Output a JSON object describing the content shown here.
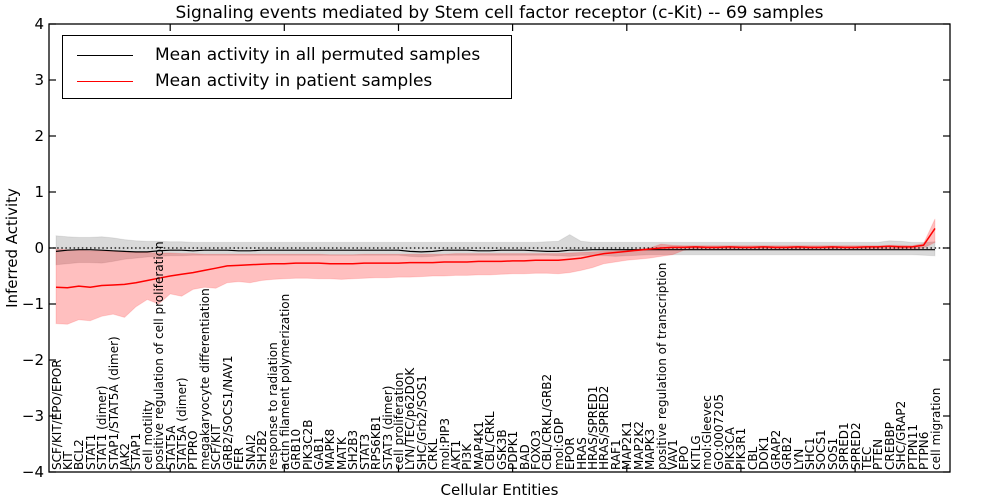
{
  "title": "Signaling events mediated by Stem cell factor receptor (c-Kit) -- 69 samples",
  "legend": [
    {
      "label": "Mean activity in all permuted samples",
      "color": "#000000"
    },
    {
      "label": "Mean activity in patient samples",
      "color": "#ff0000"
    }
  ],
  "axes": {
    "ylabel": "Inferred Activity",
    "xlabel": "Cellular Entities",
    "yticks": [
      4,
      3,
      2,
      1,
      0,
      -1,
      -2,
      -3,
      -4
    ],
    "ylim": [
      -4,
      4
    ],
    "grid": "off",
    "zero_line_style": "black dotted",
    "legend_position": "upper left"
  },
  "chart_data": {
    "type": "line",
    "title": "Signaling events mediated by Stem cell factor receptor (c-Kit) -- 69 samples",
    "xlabel": "Cellular Entities",
    "ylabel": "Inferred Activity",
    "ylim": [
      -4,
      4
    ],
    "categories": [
      "SCF/KIT/EPO/EPOR",
      "KIT",
      "BCL2",
      "STAT1",
      "STAT1 (dimer)",
      "STAP1/STAT5A (dimer)",
      "JAK2",
      "STAP1",
      "cell motility",
      "positive regulation of cell proliferation",
      "STAT5A",
      "STAT5A (dimer)",
      "PTPRO",
      "megakaryocyte differentiation",
      "SCF/KIT",
      "GRB2/SOCS1/NAV1",
      "FER",
      "SNAI2",
      "SH2B2",
      "response to radiation",
      "actin filament polymerization",
      "GRB10",
      "PIK3C2B",
      "GAB1",
      "MAPK8",
      "MATK",
      "SH2B3",
      "STAT3",
      "RPS6KB1",
      "STAT3 (dimer)",
      "cell proliferation",
      "LYN/TEC/p62DOK",
      "SHC/Grb2/SOS1",
      "CRKL",
      "mol:PIP3",
      "AKT1",
      "PI3K",
      "MAP4K1",
      "CBL/CRKL",
      "GSK3B",
      "PDPK1",
      "BAD",
      "FOXO3",
      "CBL/CRKL/GRB2",
      "mol:GDP",
      "EPOR",
      "HRAS",
      "HRAS/SPRED1",
      "HRAS/SPRED2",
      "RAF1",
      "MAP2K1",
      "MAP2K2",
      "MAPK3",
      "positive regulation of transcription",
      "VAV1",
      "EPO",
      "KITLG",
      "mol:Gleevec",
      "GO:0007205",
      "PIK3CA",
      "PIK3R1",
      "CBL",
      "DOK1",
      "GRAP2",
      "GRB2",
      "LYN",
      "SHC1",
      "SOCS1",
      "SOS1",
      "SPRED1",
      "SPRED2",
      "TEC",
      "PTEN",
      "CREBBP",
      "SHC/GRAP2",
      "PTPN11",
      "PTPN6",
      "cell migration"
    ],
    "series": [
      {
        "name": "Mean activity in all permuted samples",
        "color": "#000000",
        "values": [
          -0.06,
          -0.04,
          -0.03,
          -0.03,
          -0.04,
          -0.05,
          -0.06,
          -0.07,
          -0.07,
          -0.05,
          -0.04,
          -0.04,
          -0.05,
          -0.04,
          -0.04,
          -0.04,
          -0.05,
          -0.05,
          -0.04,
          -0.04,
          -0.04,
          -0.04,
          -0.04,
          -0.04,
          -0.04,
          -0.04,
          -0.04,
          -0.04,
          -0.04,
          -0.04,
          -0.04,
          -0.06,
          -0.07,
          -0.06,
          -0.04,
          -0.04,
          -0.04,
          -0.05,
          -0.05,
          -0.04,
          -0.04,
          -0.04,
          -0.05,
          -0.06,
          -0.06,
          -0.04,
          -0.04,
          -0.03,
          -0.03,
          -0.03,
          -0.03,
          -0.03,
          -0.03,
          -0.03,
          -0.03,
          -0.03,
          -0.03,
          -0.03,
          -0.03,
          -0.03,
          -0.03,
          -0.03,
          -0.03,
          -0.03,
          -0.03,
          -0.03,
          -0.03,
          -0.03,
          -0.03,
          -0.03,
          -0.03,
          -0.03,
          -0.03,
          -0.03,
          -0.03,
          -0.03,
          -0.03,
          -0.03
        ]
      },
      {
        "name": "Mean activity in patient samples",
        "color": "#ff0000",
        "values": [
          -0.7,
          -0.71,
          -0.68,
          -0.7,
          -0.67,
          -0.66,
          -0.65,
          -0.62,
          -0.58,
          -0.54,
          -0.5,
          -0.47,
          -0.44,
          -0.4,
          -0.36,
          -0.32,
          -0.31,
          -0.3,
          -0.29,
          -0.28,
          -0.28,
          -0.27,
          -0.27,
          -0.27,
          -0.28,
          -0.28,
          -0.28,
          -0.27,
          -0.27,
          -0.27,
          -0.27,
          -0.26,
          -0.26,
          -0.26,
          -0.25,
          -0.25,
          -0.25,
          -0.24,
          -0.24,
          -0.24,
          -0.23,
          -0.23,
          -0.22,
          -0.22,
          -0.22,
          -0.2,
          -0.18,
          -0.14,
          -0.1,
          -0.08,
          -0.06,
          -0.04,
          -0.02,
          0.0,
          0.01,
          0.01,
          0.02,
          0.01,
          0.01,
          0.02,
          0.01,
          0.01,
          0.02,
          0.01,
          0.01,
          0.02,
          0.01,
          0.01,
          0.02,
          0.01,
          0.01,
          0.02,
          0.02,
          0.03,
          0.02,
          0.02,
          0.05,
          0.35
        ]
      }
    ],
    "bands": [
      {
        "name": "permuted-range",
        "color": "#000000",
        "opacity": 0.15,
        "upper": [
          0.22,
          0.2,
          0.19,
          0.19,
          0.2,
          0.18,
          0.15,
          0.13,
          0.12,
          0.12,
          0.11,
          0.11,
          0.1,
          0.1,
          0.1,
          0.1,
          0.1,
          0.1,
          0.1,
          0.1,
          0.1,
          0.1,
          0.1,
          0.1,
          0.1,
          0.1,
          0.1,
          0.1,
          0.1,
          0.1,
          0.1,
          0.1,
          0.1,
          0.1,
          0.1,
          0.1,
          0.1,
          0.1,
          0.1,
          0.1,
          0.1,
          0.1,
          0.1,
          0.11,
          0.12,
          0.24,
          0.12,
          0.1,
          0.1,
          0.1,
          0.1,
          0.1,
          0.1,
          0.1,
          0.1,
          0.1,
          0.1,
          0.1,
          0.1,
          0.1,
          0.1,
          0.1,
          0.1,
          0.1,
          0.1,
          0.1,
          0.1,
          0.1,
          0.1,
          0.1,
          0.1,
          0.1,
          0.1,
          0.13,
          0.12,
          0.1,
          0.1,
          0.11
        ],
        "lower": [
          -0.3,
          -0.28,
          -0.26,
          -0.26,
          -0.27,
          -0.24,
          -0.2,
          -0.18,
          -0.16,
          -0.15,
          -0.14,
          -0.14,
          -0.13,
          -0.13,
          -0.13,
          -0.13,
          -0.13,
          -0.13,
          -0.13,
          -0.13,
          -0.13,
          -0.13,
          -0.13,
          -0.13,
          -0.13,
          -0.13,
          -0.13,
          -0.13,
          -0.13,
          -0.13,
          -0.13,
          -0.15,
          -0.16,
          -0.15,
          -0.13,
          -0.13,
          -0.13,
          -0.13,
          -0.13,
          -0.13,
          -0.13,
          -0.13,
          -0.13,
          -0.13,
          -0.14,
          -0.15,
          -0.13,
          -0.13,
          -0.14,
          -0.15,
          -0.14,
          -0.13,
          -0.12,
          -0.12,
          -0.12,
          -0.12,
          -0.12,
          -0.12,
          -0.12,
          -0.12,
          -0.12,
          -0.12,
          -0.12,
          -0.12,
          -0.12,
          -0.12,
          -0.12,
          -0.12,
          -0.12,
          -0.12,
          -0.12,
          -0.12,
          -0.12,
          -0.12,
          -0.12,
          -0.12,
          -0.13,
          -0.14
        ]
      },
      {
        "name": "patient-range",
        "color": "#ff0000",
        "opacity": 0.25,
        "upper": [
          -0.02,
          -0.03,
          -0.04,
          -0.05,
          -0.05,
          -0.06,
          -0.07,
          -0.08,
          -0.08,
          -0.09,
          -0.09,
          -0.1,
          -0.1,
          -0.11,
          -0.11,
          -0.11,
          -0.11,
          -0.11,
          -0.11,
          -0.11,
          -0.11,
          -0.11,
          -0.11,
          -0.11,
          -0.12,
          -0.12,
          -0.12,
          -0.11,
          -0.11,
          -0.11,
          -0.11,
          -0.11,
          -0.11,
          -0.11,
          -0.11,
          -0.1,
          -0.1,
          -0.1,
          -0.1,
          -0.1,
          -0.1,
          -0.1,
          -0.1,
          -0.1,
          -0.1,
          -0.09,
          -0.08,
          -0.07,
          -0.06,
          -0.05,
          -0.04,
          -0.02,
          0.0,
          0.07,
          0.05,
          0.04,
          0.04,
          0.04,
          0.04,
          0.04,
          0.04,
          0.04,
          0.04,
          0.04,
          0.04,
          0.04,
          0.04,
          0.04,
          0.04,
          0.04,
          0.04,
          0.04,
          0.04,
          0.05,
          0.05,
          0.04,
          0.08,
          0.52
        ],
        "lower": [
          -1.35,
          -1.36,
          -1.28,
          -1.3,
          -1.22,
          -1.18,
          -1.24,
          -1.05,
          -0.92,
          -1.0,
          -0.82,
          -0.86,
          -0.74,
          -0.7,
          -0.72,
          -0.62,
          -0.6,
          -0.62,
          -0.58,
          -0.56,
          -0.55,
          -0.54,
          -0.54,
          -0.55,
          -0.55,
          -0.56,
          -0.55,
          -0.54,
          -0.53,
          -0.53,
          -0.52,
          -0.52,
          -0.51,
          -0.5,
          -0.5,
          -0.49,
          -0.49,
          -0.48,
          -0.48,
          -0.47,
          -0.46,
          -0.46,
          -0.45,
          -0.45,
          -0.46,
          -0.44,
          -0.4,
          -0.35,
          -0.28,
          -0.25,
          -0.22,
          -0.2,
          -0.18,
          -0.15,
          -0.12,
          -0.04,
          -0.02,
          -0.02,
          -0.02,
          -0.02,
          -0.02,
          -0.02,
          -0.02,
          -0.02,
          -0.02,
          -0.02,
          -0.02,
          -0.02,
          -0.02,
          -0.02,
          -0.02,
          -0.02,
          -0.02,
          -0.02,
          -0.02,
          -0.02,
          0.0,
          0.1
        ]
      }
    ]
  }
}
